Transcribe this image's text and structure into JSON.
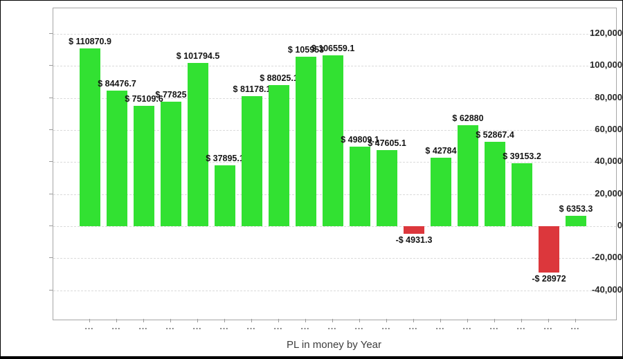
{
  "chart_data": {
    "type": "bar",
    "title": "",
    "xlabel": "PL in money by Year",
    "ylabel": "",
    "legend": "none",
    "grid": "horizontal-dashed",
    "ylim": [
      -58000,
      136000
    ],
    "y_axis": {
      "tick_values": [
        120000,
        100000,
        80000,
        60000,
        40000,
        20000,
        0,
        -20000,
        -40000
      ],
      "tick_labels": [
        "120,000",
        "100,000",
        "80,000",
        "60,000",
        "40,000",
        "20,000",
        "0",
        "-20,000",
        "-40,000"
      ]
    },
    "categories": [
      "...",
      "...",
      "...",
      "...",
      "...",
      "...",
      "...",
      "...",
      "...",
      "...",
      "...",
      "...",
      "...",
      "...",
      "...",
      "...",
      "...",
      "...",
      "..."
    ],
    "values": [
      110870.9,
      84476.7,
      75109.6,
      77825,
      101794.5,
      37895.1,
      81178.1,
      88025.1,
      105953,
      106559.1,
      49809.1,
      47605.1,
      -4931.3,
      42784,
      62880,
      52867.4,
      39153.2,
      -28972,
      6353.3
    ],
    "bar_labels": [
      "$ 110870.9",
      "$ 84476.7",
      "$ 75109.6",
      "$ 77825",
      "$ 101794.5",
      "$ 37895.1",
      "$ 81178.1",
      "$ 88025.1",
      "$ 105953",
      "$ 106559.1",
      "$ 49809.1",
      "$ 47605.1",
      "-$ 4931.3",
      "$ 42784",
      "$ 62880",
      "$ 52867.4",
      "$ 39153.2",
      "-$ 28972",
      "$ 6353.3"
    ],
    "colors": {
      "positive_bar": "#32E132",
      "negative_bar": "#DC373C",
      "grid_line": "#DADADA",
      "plot_border": "#A6A6A6",
      "value_label_text": "#141414",
      "y_tick_text": "#282828",
      "x_tick_text": "#666666",
      "xlabel_text": "#3D3D3D",
      "background": "#FFFFFF",
      "outer_border": "#000000"
    }
  }
}
